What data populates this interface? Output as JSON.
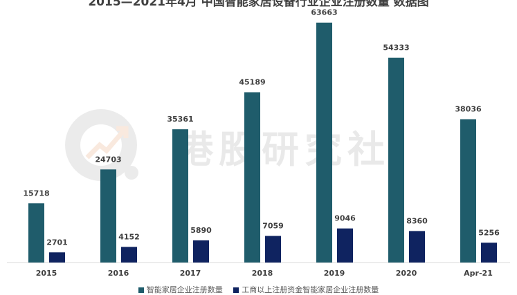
{
  "chart_data": {
    "type": "bar",
    "title": "2015—2021年4月 中国智能家居设备行业企业注册数量 数据图",
    "categories": [
      "2015",
      "2016",
      "2017",
      "2018",
      "2019",
      "2020",
      "Apr-21"
    ],
    "series": [
      {
        "name": "智能家居企业注册数量",
        "values": [
          15718,
          24703,
          35361,
          45189,
          63663,
          54333,
          38036
        ],
        "color": "#1f5c6b"
      },
      {
        "name": "工商以上注册资金智能家居企业注册数量",
        "values": [
          2701,
          4152,
          5890,
          7059,
          9046,
          8360,
          5256
        ],
        "color": "#0f2360"
      }
    ],
    "ylim": [
      0,
      66000
    ],
    "grid": false,
    "legend_position": "bottom"
  },
  "watermark": {
    "text": "港股研究社"
  }
}
